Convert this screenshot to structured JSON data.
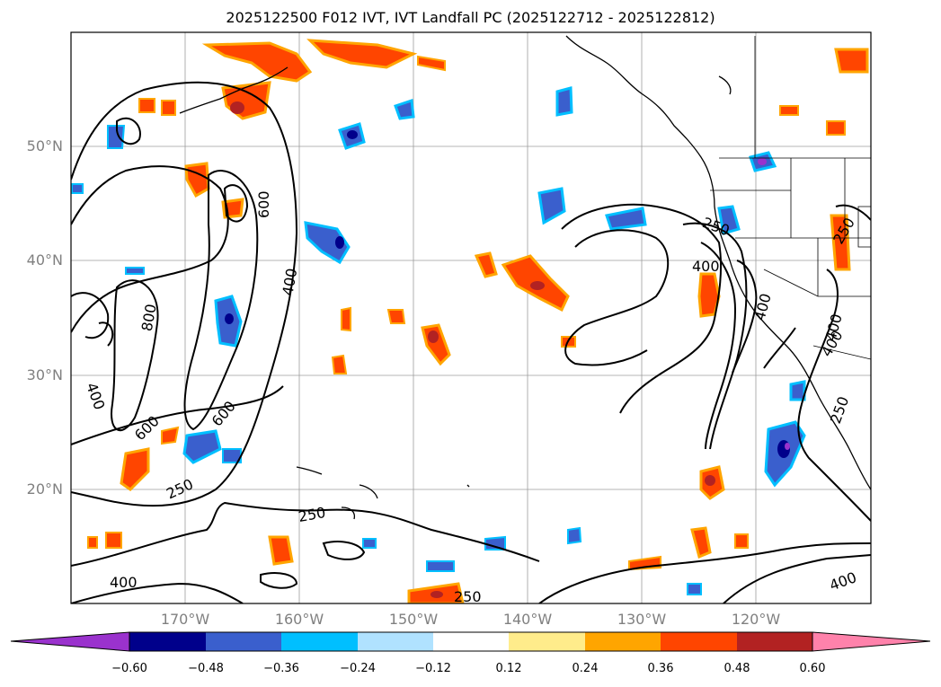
{
  "title": "2025122500 F012 IVT, IVT Landfall PC (2025122712 - 2025122812)",
  "lat_labels": [
    "50°N",
    "40°N",
    "30°N",
    "20°N"
  ],
  "lon_labels": [
    "170°W",
    "160°W",
    "150°W",
    "140°W",
    "130°W",
    "120°W"
  ],
  "contour_labels": [
    "600",
    "400",
    "800",
    "400",
    "600",
    "600",
    "250",
    "250",
    "400",
    "250",
    "400",
    "400",
    "250",
    "400",
    "400",
    "250",
    "250",
    "400"
  ],
  "colorbar": {
    "tick_labels": [
      "−0.60",
      "−0.48",
      "−0.36",
      "−0.24",
      "−0.12",
      "0.12",
      "0.24",
      "0.36",
      "0.48",
      "0.60"
    ],
    "colors": [
      "#9a32cd",
      "#00008b",
      "#3a5fcd",
      "#00bfff",
      "#b0e2ff",
      "#ffffff",
      "#ffec8b",
      "#ffa500",
      "#ff4500",
      "#b22222",
      "#ff82ab"
    ]
  },
  "colors": {
    "positive_fill": "#ff4500",
    "positive_edge": "#ffa500",
    "positive_core": "#b22222",
    "negative_fill": "#3a5fcd",
    "negative_edge": "#00bfff",
    "negative_core": "#00008b",
    "grid": "#9c9c9c",
    "contour": "#000000"
  }
}
